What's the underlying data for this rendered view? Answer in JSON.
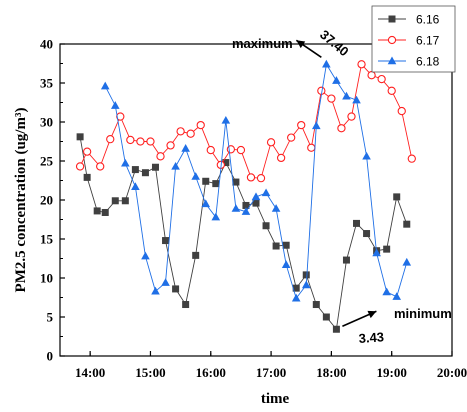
{
  "chart_data": {
    "type": "line",
    "xlabel": "time",
    "ylabel": "PM2.5 concentration (ug/m³)",
    "xlim": [
      "13:30",
      "20:00"
    ],
    "ylim": [
      0,
      40
    ],
    "x_ticks": [
      "14:00",
      "15:00",
      "16:00",
      "17:00",
      "18:00",
      "19:00",
      "20:00"
    ],
    "y_ticks": [
      0,
      5,
      10,
      15,
      20,
      25,
      30,
      35,
      40
    ],
    "legend_position": "top-right",
    "series": [
      {
        "name": "6.16",
        "color": "#404040",
        "marker": "square",
        "points": [
          [
            "13:50",
            28.1
          ],
          [
            "13:57",
            22.9
          ],
          [
            "14:07",
            18.6
          ],
          [
            "14:15",
            18.4
          ],
          [
            "14:25",
            19.9
          ],
          [
            "14:35",
            19.9
          ],
          [
            "14:45",
            23.9
          ],
          [
            "14:55",
            23.5
          ],
          [
            "15:05",
            24.2
          ],
          [
            "15:15",
            14.8
          ],
          [
            "15:25",
            8.6
          ],
          [
            "15:35",
            6.6
          ],
          [
            "15:45",
            12.9
          ],
          [
            "15:55",
            22.4
          ],
          [
            "16:05",
            22.1
          ],
          [
            "16:15",
            24.8
          ],
          [
            "16:25",
            22.3
          ],
          [
            "16:35",
            19.3
          ],
          [
            "16:45",
            19.6
          ],
          [
            "16:55",
            16.7
          ],
          [
            "17:05",
            14.1
          ],
          [
            "17:15",
            14.2
          ],
          [
            "17:25",
            8.7
          ],
          [
            "17:35",
            10.4
          ],
          [
            "17:45",
            6.6
          ],
          [
            "17:55",
            5.0
          ],
          [
            "18:05",
            3.43
          ],
          [
            "18:15",
            12.3
          ],
          [
            "18:25",
            17.0
          ],
          [
            "18:35",
            15.7
          ],
          [
            "18:45",
            13.5
          ],
          [
            "18:55",
            13.7
          ],
          [
            "19:05",
            20.4
          ],
          [
            "19:15",
            16.9
          ]
        ]
      },
      {
        "name": "6.17",
        "color": "#ff2020",
        "marker": "circle",
        "points": [
          [
            "13:50",
            24.3
          ],
          [
            "13:57",
            26.2
          ],
          [
            "14:10",
            24.3
          ],
          [
            "14:20",
            27.8
          ],
          [
            "14:30",
            30.7
          ],
          [
            "14:40",
            27.7
          ],
          [
            "14:50",
            27.5
          ],
          [
            "15:00",
            27.5
          ],
          [
            "15:10",
            25.6
          ],
          [
            "15:20",
            27.0
          ],
          [
            "15:30",
            28.8
          ],
          [
            "15:40",
            28.5
          ],
          [
            "15:50",
            29.6
          ],
          [
            "16:00",
            26.4
          ],
          [
            "16:10",
            24.5
          ],
          [
            "16:20",
            26.5
          ],
          [
            "16:30",
            26.4
          ],
          [
            "16:40",
            22.9
          ],
          [
            "16:50",
            22.8
          ],
          [
            "17:00",
            27.4
          ],
          [
            "17:10",
            25.4
          ],
          [
            "17:20",
            28.0
          ],
          [
            "17:30",
            29.6
          ],
          [
            "17:40",
            26.7
          ],
          [
            "17:50",
            34.0
          ],
          [
            "18:00",
            33.0
          ],
          [
            "18:10",
            29.2
          ],
          [
            "18:20",
            30.7
          ],
          [
            "18:30",
            37.4
          ],
          [
            "18:40",
            36.0
          ],
          [
            "18:50",
            35.5
          ],
          [
            "19:00",
            34.0
          ],
          [
            "19:10",
            31.4
          ],
          [
            "19:20",
            25.3
          ]
        ]
      },
      {
        "name": "6.18",
        "color": "#1f6fe6",
        "marker": "triangle",
        "points": [
          [
            "14:15",
            34.6
          ],
          [
            "14:25",
            32.1
          ],
          [
            "14:35",
            24.7
          ],
          [
            "14:45",
            21.7
          ],
          [
            "14:55",
            12.8
          ],
          [
            "15:05",
            8.3
          ],
          [
            "15:15",
            9.4
          ],
          [
            "15:25",
            24.3
          ],
          [
            "15:35",
            26.6
          ],
          [
            "15:45",
            23.0
          ],
          [
            "15:55",
            19.5
          ],
          [
            "16:05",
            17.8
          ],
          [
            "16:15",
            30.2
          ],
          [
            "16:25",
            18.9
          ],
          [
            "16:35",
            18.5
          ],
          [
            "16:45",
            20.4
          ],
          [
            "16:55",
            20.9
          ],
          [
            "17:05",
            18.9
          ],
          [
            "17:15",
            11.7
          ],
          [
            "17:25",
            7.4
          ],
          [
            "17:35",
            9.1
          ],
          [
            "17:45",
            29.5
          ],
          [
            "17:55",
            37.4
          ],
          [
            "18:05",
            35.3
          ],
          [
            "18:15",
            33.3
          ],
          [
            "18:25",
            32.8
          ],
          [
            "18:35",
            25.6
          ],
          [
            "18:45",
            13.2
          ],
          [
            "18:55",
            8.2
          ],
          [
            "19:05",
            7.6
          ],
          [
            "19:15",
            12.0
          ]
        ]
      }
    ],
    "annotations": [
      {
        "label": "maximum",
        "value_text": "37.40",
        "x": "17:55",
        "y": 37.4
      },
      {
        "label": "minimum",
        "value_text": "3.43",
        "x": "18:05",
        "y": 3.43
      }
    ]
  }
}
